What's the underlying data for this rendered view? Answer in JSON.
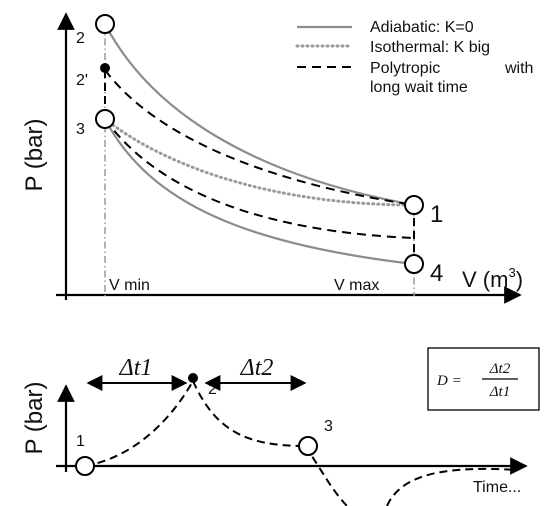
{
  "top_plot": {
    "y_axis_label": "P (bar)",
    "x_axis_label": "V (m",
    "x_axis_unit_superscript": "3",
    "x_axis_label_close": ")",
    "vmin_label": "V min",
    "vmax_label": "V max",
    "state_labels": {
      "s1": "1",
      "s2": "2",
      "s2p": "2'",
      "s3": "3",
      "s4": "4"
    },
    "legend": {
      "adiabatic": "Adiabatic: K=0",
      "isothermal": "Isothermal: K big",
      "polytropic_line1": "Polytropic",
      "polytropic_line1_tail": "with",
      "polytropic_line2": "long wait time"
    }
  },
  "bottom_plot": {
    "y_axis_label": "P (bar)",
    "x_axis_label": "Time...",
    "dt1_label": "Δt1",
    "dt2_label": "Δt2",
    "state_labels": {
      "s1": "1",
      "s2p": "2'",
      "s3": "3"
    },
    "formula": {
      "lhs": "D =",
      "numerator": "Δt2",
      "denominator": "Δt1"
    }
  },
  "colors": {
    "axis": "#000000",
    "adiabatic": "#8c8c8c",
    "isothermal": "#9a9a9a",
    "polytropic": "#000000",
    "guide": "#999999"
  }
}
